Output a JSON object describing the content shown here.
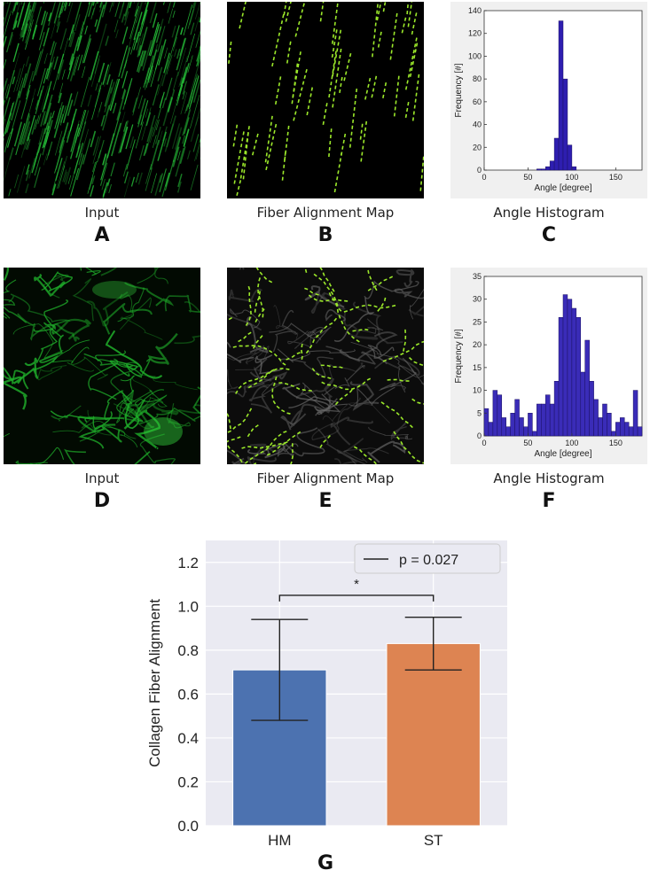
{
  "row1": {
    "input_caption": "Input",
    "map_caption": "Fiber Alignment Map",
    "hist_caption": "Angle Histogram",
    "letters": [
      "A",
      "B",
      "C"
    ]
  },
  "row2": {
    "input_caption": "Input",
    "map_caption": "Fiber Alignment Map",
    "hist_caption": "Angle Histogram",
    "letters": [
      "D",
      "E",
      "F"
    ]
  },
  "panel_g_letter": "G",
  "chart_data": [
    {
      "panel": "C",
      "type": "bar",
      "xlabel": "Angle [degree]",
      "ylabel": "Frequency [#]",
      "xlim": [
        0,
        180
      ],
      "ylim": [
        0,
        140
      ],
      "xticks": [
        0,
        50,
        100,
        150
      ],
      "yticks": [
        0,
        20,
        40,
        60,
        80,
        100,
        120,
        140
      ],
      "bin_width": 5,
      "bin_starts": [
        60,
        65,
        70,
        75,
        80,
        85,
        90,
        95,
        100
      ],
      "values": [
        1,
        1,
        3,
        8,
        28,
        131,
        80,
        22,
        3
      ],
      "color": "#2e1eb0"
    },
    {
      "panel": "F",
      "type": "bar",
      "xlabel": "Angle [degree]",
      "ylabel": "Frequency [#]",
      "xlim": [
        0,
        180
      ],
      "ylim": [
        0,
        35
      ],
      "xticks": [
        0,
        50,
        100,
        150
      ],
      "yticks": [
        0,
        5,
        10,
        15,
        20,
        25,
        30,
        35
      ],
      "bin_width": 5,
      "values": [
        6,
        3,
        10,
        9,
        4,
        2,
        5,
        8,
        4,
        2,
        5,
        1,
        7,
        7,
        9,
        7,
        12,
        26,
        31,
        30,
        28,
        26,
        14,
        21,
        12,
        8,
        4,
        7,
        5,
        1,
        3,
        4,
        3,
        2,
        10,
        2
      ],
      "color": "#3a2cb8"
    },
    {
      "panel": "G",
      "type": "bar",
      "categories": [
        "HM",
        "ST"
      ],
      "values": [
        0.71,
        0.83
      ],
      "error_low": [
        0.48,
        0.71
      ],
      "error_high": [
        0.94,
        0.95
      ],
      "colors": [
        "#4c72b0",
        "#dd8452"
      ],
      "ylabel": "Collagen Fiber Alignment",
      "ylim": [
        0,
        1.3
      ],
      "yticks": [
        "0.0",
        "0.2",
        "0.4",
        "0.6",
        "0.8",
        "1.0",
        "1.2"
      ],
      "significance": "*",
      "legend": "p = 0.027",
      "legend_position": "top-right",
      "grid": true
    }
  ]
}
